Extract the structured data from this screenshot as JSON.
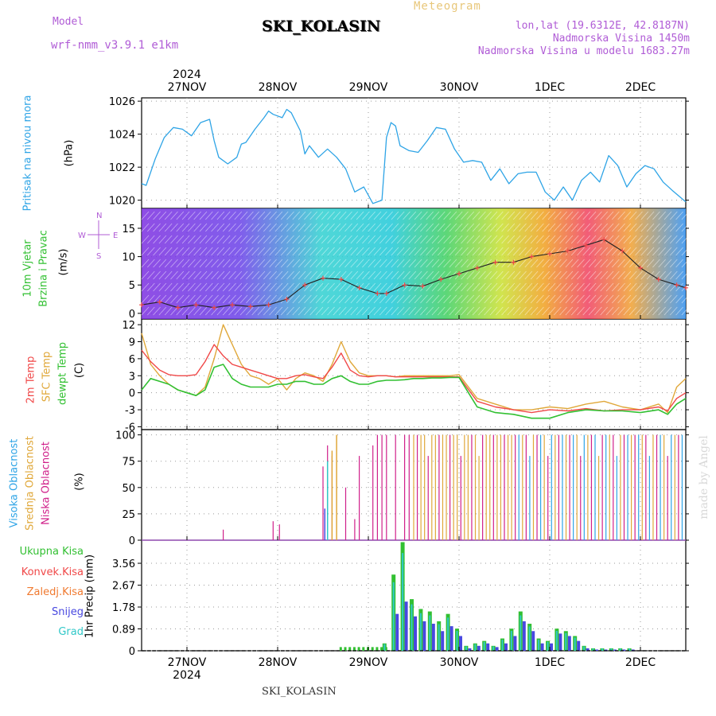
{
  "header": {
    "model_label": "Model",
    "model_name": "wrf-nmm_v3.9.1 e1km",
    "title": "SKI_KOLASIN",
    "meteogram": "Meteogram",
    "lonlat": "lon,lat (19.6312E, 42.8187N)",
    "elevation": "Nadmorska Visina 1450m",
    "model_elevation": "Nadmorska Visina u modelu 1683.27m",
    "bottom_station": "SKI_KOLASIN",
    "watermark": "made by Angel"
  },
  "colors": {
    "pressure": "#2ea4e6",
    "temp2m": "#f04848",
    "sfc": "#e0a83a",
    "dewpt": "#32c032",
    "high_cloud": "#2ea4e6",
    "mid_cloud": "#e0a83a",
    "low_cloud": "#d0208a",
    "total_precip": "#32c032",
    "conv_precip": "#f04848",
    "frozen_precip": "#f07a30",
    "snow": "#4848e0",
    "graupel": "#30c8c8"
  },
  "side_labels": {
    "pressure": "Pritisak na nivou mora",
    "pressure_unit": "(hPa)",
    "wind_a": "10m Vjetar",
    "wind_b": "Brzina i Pravac",
    "wind_unit": "(m/s)",
    "compass_w": "W",
    "compass_e": "E",
    "compass_n": "N",
    "compass_s": "S",
    "temp_a": "2m Temp",
    "temp_b": "SFC Temp",
    "temp_c": "dewpt Temp",
    "temp_unit": "(C)",
    "cloud_a": "Visoka Oblacnost",
    "cloud_b": "Srednja Oblacnost",
    "cloud_c": "Niska Oblacnost",
    "cloud_unit": "(%)",
    "precip_1": "Ukupna Kisa",
    "precip_2": "Konvek.Kisa",
    "precip_3": "Zaledj.Kisa",
    "precip_4": "Snijeg",
    "precip_5": "Grad",
    "precip_unit": "1hr Precip (mm)"
  },
  "chart_data": {
    "type": "line",
    "x_days": [
      "27NOV",
      "28NOV",
      "29NOV",
      "30NOV",
      "1DEC",
      "2DEC"
    ],
    "year": "2024",
    "pressure": {
      "ylim": [
        1019.5,
        1026.2
      ],
      "ticks": [
        "1020",
        "1022",
        "1024",
        "1026"
      ],
      "x": [
        -0.5,
        -0.45,
        -0.35,
        -0.25,
        -0.15,
        -0.05,
        0.05,
        0.15,
        0.25,
        0.3,
        0.35,
        0.45,
        0.55,
        0.6,
        0.65,
        0.75,
        0.85,
        0.9,
        0.95,
        1.05,
        1.1,
        1.15,
        1.25,
        1.3,
        1.35,
        1.45,
        1.55,
        1.65,
        1.75,
        1.85,
        1.95,
        2.05,
        2.15,
        2.2,
        2.25,
        2.3,
        2.35,
        2.45,
        2.55,
        2.65,
        2.75,
        2.85,
        2.95,
        3.05,
        3.15,
        3.25,
        3.35,
        3.45,
        3.55,
        3.65,
        3.75,
        3.85,
        3.95,
        4.05,
        4.15,
        4.25,
        4.35,
        4.45,
        4.55,
        4.65,
        4.75,
        4.85,
        4.95,
        5.05,
        5.15,
        5.25,
        5.35,
        5.5
      ],
      "y": [
        1021.0,
        1020.9,
        1022.5,
        1023.8,
        1024.4,
        1024.3,
        1023.9,
        1024.7,
        1024.9,
        1023.6,
        1022.6,
        1022.2,
        1022.6,
        1023.4,
        1023.5,
        1024.3,
        1025.0,
        1025.4,
        1025.2,
        1025.0,
        1025.5,
        1025.3,
        1024.2,
        1022.8,
        1023.3,
        1022.6,
        1023.1,
        1022.6,
        1021.9,
        1020.5,
        1020.8,
        1019.8,
        1020.0,
        1023.8,
        1024.7,
        1024.5,
        1023.3,
        1023.0,
        1022.9,
        1023.6,
        1024.4,
        1024.3,
        1023.1,
        1022.3,
        1022.4,
        1022.3,
        1021.2,
        1021.9,
        1021.0,
        1021.6,
        1021.7,
        1021.7,
        1020.5,
        1020.0,
        1020.8,
        1020.0,
        1021.2,
        1021.7,
        1021.1,
        1022.7,
        1022.1,
        1020.8,
        1021.6,
        1022.1,
        1021.9,
        1021.1,
        1020.6,
        1019.9
      ]
    },
    "wind": {
      "ylim": [
        -1,
        18.5
      ],
      "ticks": [
        "0",
        "5",
        "10",
        "15"
      ],
      "speed_x": [
        -0.5,
        -0.3,
        -0.1,
        0.1,
        0.3,
        0.5,
        0.7,
        0.9,
        1.1,
        1.3,
        1.5,
        1.7,
        1.9,
        2.1,
        2.2,
        2.4,
        2.6,
        2.8,
        3.0,
        3.2,
        3.4,
        3.6,
        3.8,
        4.0,
        4.2,
        4.4,
        4.6,
        4.8,
        5.0,
        5.2,
        5.4,
        5.5
      ],
      "speed_y": [
        1.5,
        2.0,
        1.0,
        1.5,
        1.0,
        1.5,
        1.2,
        1.5,
        2.5,
        5.0,
        6.2,
        6.0,
        4.5,
        3.5,
        3.5,
        5.0,
        4.8,
        6.0,
        7.0,
        8.0,
        9.0,
        9.0,
        10.0,
        10.5,
        11.0,
        12.0,
        13.0,
        11.0,
        8.0,
        6.0,
        5.0,
        4.5
      ]
    },
    "temperature": {
      "ylim": [
        -6.5,
        13
      ],
      "ticks": [
        "-6",
        "-3",
        "0",
        "3",
        "6",
        "9",
        "12"
      ],
      "x": [
        -0.5,
        -0.4,
        -0.3,
        -0.2,
        -0.1,
        0.0,
        0.1,
        0.2,
        0.3,
        0.4,
        0.5,
        0.6,
        0.7,
        0.8,
        0.9,
        1.0,
        1.1,
        1.2,
        1.3,
        1.4,
        1.5,
        1.6,
        1.7,
        1.8,
        1.9,
        2.0,
        2.1,
        2.2,
        2.3,
        2.4,
        2.5,
        2.6,
        2.7,
        2.8,
        2.9,
        3.0,
        3.2,
        3.4,
        3.6,
        3.8,
        4.0,
        4.2,
        4.4,
        4.6,
        4.8,
        5.0,
        5.2,
        5.3,
        5.4,
        5.5
      ],
      "t2m": [
        7.5,
        5.5,
        4.0,
        3.2,
        3.0,
        3.0,
        3.2,
        5.5,
        8.5,
        6.5,
        5.0,
        4.5,
        4.0,
        3.5,
        3.0,
        2.5,
        2.5,
        3.0,
        3.2,
        2.8,
        2.5,
        4.5,
        7.0,
        4.0,
        3.0,
        2.8,
        3.0,
        3.0,
        2.8,
        2.8,
        2.8,
        2.8,
        2.8,
        2.8,
        2.8,
        2.8,
        -1.5,
        -2.5,
        -3.0,
        -3.5,
        -3.0,
        -3.2,
        -2.8,
        -3.2,
        -3.0,
        -3.0,
        -2.5,
        -3.2,
        -1.0,
        0.0
      ],
      "sfc": [
        10.5,
        5.0,
        3.0,
        1.5,
        0.5,
        0.0,
        -0.5,
        1.0,
        6.0,
        12.0,
        8.5,
        5.0,
        3.0,
        2.5,
        1.5,
        2.5,
        0.5,
        2.5,
        3.5,
        3.0,
        2.0,
        5.0,
        9.0,
        5.5,
        3.5,
        3.0,
        3.0,
        3.0,
        2.8,
        3.0,
        3.0,
        3.0,
        3.0,
        3.0,
        3.0,
        3.2,
        -1.0,
        -2.0,
        -3.0,
        -3.0,
        -2.5,
        -2.8,
        -2.0,
        -1.5,
        -2.5,
        -3.0,
        -2.0,
        -3.5,
        1.0,
        2.5
      ],
      "dewpt": [
        0.5,
        2.5,
        2.0,
        1.5,
        0.5,
        0.0,
        -0.5,
        0.5,
        4.5,
        5.0,
        2.5,
        1.5,
        1.0,
        1.0,
        1.0,
        1.5,
        1.5,
        2.0,
        2.0,
        1.5,
        1.5,
        2.5,
        3.0,
        2.0,
        1.5,
        1.5,
        2.0,
        2.2,
        2.2,
        2.3,
        2.5,
        2.5,
        2.6,
        2.6,
        2.7,
        2.7,
        -2.5,
        -3.5,
        -3.8,
        -4.5,
        -4.5,
        -3.5,
        -3.0,
        -3.2,
        -3.2,
        -3.5,
        -3.0,
        -3.8,
        -2.0,
        -1.0
      ]
    },
    "clouds": {
      "ylim": [
        0,
        105
      ],
      "ticks": [
        "0",
        "25",
        "50",
        "75",
        "100"
      ]
    },
    "precip": {
      "ylim": [
        0,
        4.5
      ],
      "ticks": [
        "0",
        "0.89",
        "1.78",
        "2.67",
        "3.56"
      ],
      "x": [
        2.2,
        2.3,
        2.4,
        2.5,
        2.6,
        2.7,
        2.8,
        2.9,
        3.0,
        3.1,
        3.2,
        3.3,
        3.4,
        3.5,
        3.6,
        3.7,
        3.8,
        3.9,
        4.0,
        4.1,
        4.2,
        4.3,
        4.4,
        4.5,
        4.6,
        4.7,
        4.8,
        4.9
      ],
      "total": [
        0.3,
        3.1,
        4.42,
        2.1,
        1.7,
        1.6,
        1.2,
        1.5,
        0.9,
        0.2,
        0.3,
        0.4,
        0.2,
        0.5,
        0.9,
        1.6,
        1.1,
        0.5,
        0.4,
        0.9,
        0.8,
        0.6,
        0.2,
        0.1,
        0.1,
        0.1,
        0.1,
        0.1
      ],
      "snow": [
        0.0,
        1.5,
        2.0,
        1.4,
        1.2,
        1.1,
        0.8,
        1.0,
        0.6,
        0.1,
        0.2,
        0.3,
        0.15,
        0.3,
        0.6,
        1.2,
        0.8,
        0.3,
        0.3,
        0.7,
        0.6,
        0.4,
        0.1,
        0.05,
        0.05,
        0.05,
        0.05,
        0.05
      ]
    }
  }
}
